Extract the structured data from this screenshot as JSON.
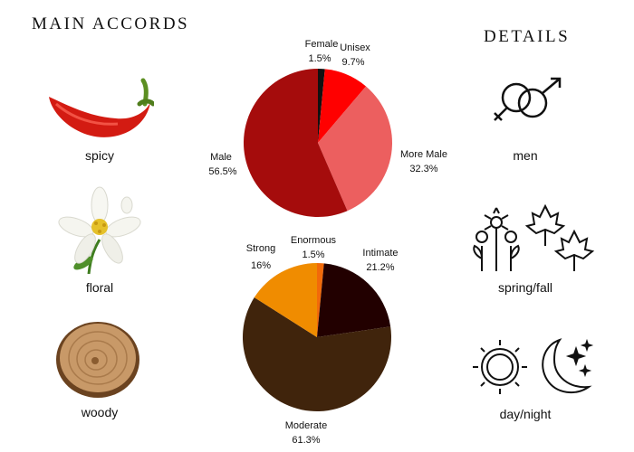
{
  "main_accords": {
    "heading": "MAIN ACCORDS",
    "items": [
      {
        "label": "spicy",
        "icon": "chili-pepper-icon"
      },
      {
        "label": "floral",
        "icon": "orange-blossom-icon"
      },
      {
        "label": "woody",
        "icon": "wood-slice-icon"
      }
    ]
  },
  "details": {
    "heading": "DETAILS",
    "items": [
      {
        "label": "men",
        "icon": "gender-symbols-icon"
      },
      {
        "label": "spring/fall",
        "icon": "flowers-and-leaves-icon"
      },
      {
        "label": "day/night",
        "icon": "sun-and-moon-icon"
      }
    ]
  },
  "colors": {
    "female": "#111111",
    "unisex": "#ff0000",
    "more_male": "#ec5f5f",
    "male": "#a50c0c",
    "enormous": "#f26a0a",
    "intimate": "#220000",
    "moderate": "#40240c",
    "strong": "#f08c00"
  },
  "chart_data": [
    {
      "type": "pie",
      "title": "",
      "slices": [
        {
          "label": "Female",
          "value": 1.5,
          "value_label": "1.5%"
        },
        {
          "label": "Unisex",
          "value": 9.7,
          "value_label": "9.7%"
        },
        {
          "label": "More Male",
          "value": 32.3,
          "value_label": "32.3%"
        },
        {
          "label": "Male",
          "value": 56.5,
          "value_label": "56.5%"
        }
      ]
    },
    {
      "type": "pie",
      "title": "",
      "slices": [
        {
          "label": "Enormous",
          "value": 1.5,
          "value_label": "1.5%"
        },
        {
          "label": "Intimate",
          "value": 21.2,
          "value_label": "21.2%"
        },
        {
          "label": "Moderate",
          "value": 61.3,
          "value_label": "61.3%"
        },
        {
          "label": "Strong",
          "value": 16,
          "value_label": "16%"
        }
      ]
    }
  ]
}
